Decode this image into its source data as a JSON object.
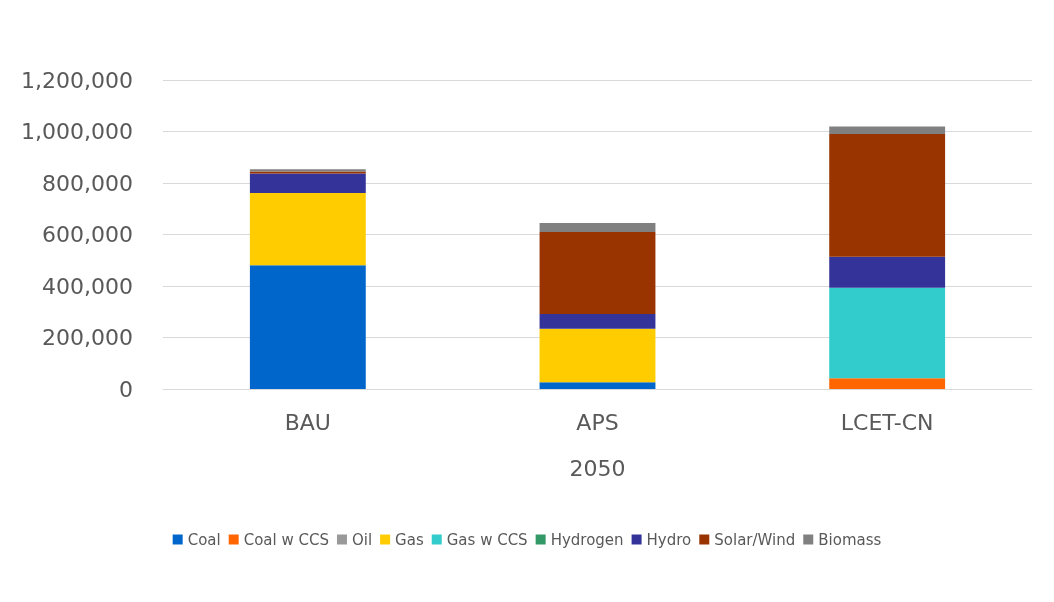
{
  "chart_data": {
    "type": "bar",
    "stacked": true,
    "categories": [
      "BAU",
      "APS",
      "LCET-CN"
    ],
    "xlabel": "2050",
    "series": [
      {
        "name": "Coal",
        "color": "#0066cc",
        "values": [
          481000,
          26000,
          0
        ]
      },
      {
        "name": "Coal w CCS",
        "color": "#ff6600",
        "values": [
          0,
          0,
          42000
        ]
      },
      {
        "name": "Oil",
        "color": "#999999",
        "values": [
          0,
          0,
          0
        ]
      },
      {
        "name": "Gas",
        "color": "#ffcc00",
        "values": [
          280000,
          208000,
          0
        ]
      },
      {
        "name": "Gas w CCS",
        "color": "#33cccc",
        "values": [
          0,
          0,
          351000
        ]
      },
      {
        "name": "Hydrogen",
        "color": "#339966",
        "values": [
          0,
          0,
          0
        ]
      },
      {
        "name": "Hydro",
        "color": "#333399",
        "values": [
          76000,
          57000,
          121000
        ]
      },
      {
        "name": "Solar/Wind",
        "color": "#993300",
        "values": [
          8000,
          319000,
          476000
        ]
      },
      {
        "name": "Biomass",
        "color": "#808080",
        "values": [
          8000,
          35000,
          29000
        ]
      }
    ],
    "ylim": [
      0,
      1200000
    ],
    "yticks": [
      {
        "value": 0,
        "label": "0"
      },
      {
        "value": 200000,
        "label": "200,000"
      },
      {
        "value": 400000,
        "label": "400,000"
      },
      {
        "value": 600000,
        "label": "600,000"
      },
      {
        "value": 800000,
        "label": "800,000"
      },
      {
        "value": 1000000,
        "label": "1,000,000"
      },
      {
        "value": 1200000,
        "label": "1,200,000"
      }
    ],
    "grid": "y",
    "legend": "bottom"
  }
}
